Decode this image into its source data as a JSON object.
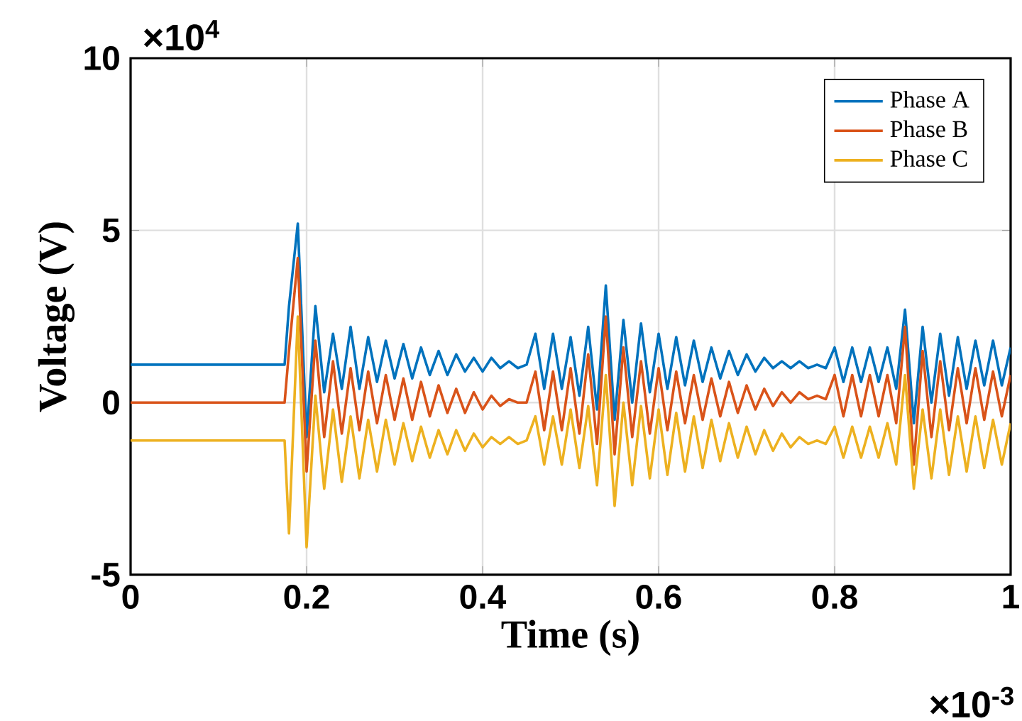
{
  "chart_data": {
    "type": "line",
    "xlabel": "Time (s)",
    "ylabel": "Voltage (V)",
    "annotations": [
      "×10$^{4}$",
      "×10$^{-3}$"
    ],
    "xlim": [
      0,
      1
    ],
    "ylim": [
      -5,
      10
    ],
    "xticks": [
      0,
      0.2,
      0.4,
      0.6,
      0.8,
      1
    ],
    "yticks": [
      -5,
      0,
      5,
      10
    ],
    "grid": true,
    "legend": "top right",
    "line_style": "solid",
    "x": [
      0,
      0.175,
      0.18,
      0.19,
      0.2,
      0.21,
      0.22,
      0.23,
      0.24,
      0.25,
      0.26,
      0.27,
      0.28,
      0.29,
      0.3,
      0.31,
      0.32,
      0.33,
      0.34,
      0.35,
      0.36,
      0.37,
      0.38,
      0.39,
      0.4,
      0.41,
      0.42,
      0.43,
      0.44,
      0.45,
      0.46,
      0.47,
      0.48,
      0.49,
      0.5,
      0.51,
      0.52,
      0.53,
      0.54,
      0.55,
      0.56,
      0.57,
      0.58,
      0.59,
      0.6,
      0.61,
      0.62,
      0.63,
      0.64,
      0.65,
      0.66,
      0.67,
      0.68,
      0.69,
      0.7,
      0.71,
      0.72,
      0.73,
      0.74,
      0.75,
      0.76,
      0.77,
      0.78,
      0.79,
      0.8,
      0.81,
      0.82,
      0.83,
      0.84,
      0.85,
      0.86,
      0.87,
      0.88,
      0.89,
      0.9,
      0.91,
      0.92,
      0.93,
      0.94,
      0.95,
      0.96,
      0.97,
      0.98,
      0.99,
      1.0
    ],
    "series": [
      {
        "name": "Phase A",
        "color": "#0072bd",
        "values": [
          1.1,
          1.1,
          2.8,
          5.2,
          -1.0,
          2.8,
          0.3,
          2.0,
          0.4,
          2.2,
          0.4,
          1.9,
          0.6,
          1.8,
          0.7,
          1.7,
          0.7,
          1.6,
          0.8,
          1.5,
          0.8,
          1.4,
          0.9,
          1.3,
          0.9,
          1.3,
          1.0,
          1.2,
          1.0,
          1.1,
          2.0,
          0.4,
          2.0,
          0.4,
          1.9,
          0.2,
          2.2,
          -0.2,
          3.4,
          -0.5,
          2.4,
          0.0,
          2.3,
          0.3,
          2.0,
          0.4,
          1.9,
          0.5,
          1.8,
          0.6,
          1.6,
          0.7,
          1.5,
          0.8,
          1.4,
          0.9,
          1.3,
          1.0,
          1.2,
          1.0,
          1.2,
          1.0,
          1.1,
          1.0,
          1.6,
          0.6,
          1.6,
          0.6,
          1.6,
          0.6,
          1.6,
          0.4,
          2.7,
          -0.6,
          2.2,
          0.0,
          2.0,
          0.2,
          1.9,
          0.4,
          1.8,
          0.5,
          1.8,
          0.5,
          1.6
        ]
      },
      {
        "name": "Phase B",
        "color": "#d95319",
        "values": [
          0,
          0,
          1.5,
          4.2,
          -2.0,
          1.8,
          -1.0,
          1.2,
          -0.9,
          1.0,
          -0.8,
          0.9,
          -0.6,
          0.8,
          -0.5,
          0.7,
          -0.5,
          0.6,
          -0.4,
          0.5,
          -0.3,
          0.4,
          -0.3,
          0.3,
          -0.2,
          0.2,
          -0.1,
          0.1,
          0.0,
          0.0,
          0.9,
          -0.8,
          0.9,
          -0.8,
          1.0,
          -0.9,
          1.4,
          -1.2,
          2.5,
          -1.5,
          1.6,
          -1.0,
          1.2,
          -0.9,
          1.0,
          -0.8,
          0.9,
          -0.6,
          0.8,
          -0.5,
          0.7,
          -0.4,
          0.6,
          -0.3,
          0.5,
          -0.2,
          0.4,
          -0.1,
          0.3,
          0.0,
          0.3,
          0.1,
          0.2,
          0.1,
          0.8,
          -0.4,
          0.8,
          -0.4,
          0.8,
          -0.4,
          0.8,
          -0.6,
          2.2,
          -1.8,
          1.5,
          -1.0,
          1.2,
          -0.8,
          1.0,
          -0.6,
          1.0,
          -0.5,
          0.9,
          -0.4,
          0.8
        ]
      },
      {
        "name": "Phase C",
        "color": "#edb120",
        "values": [
          -1.1,
          -1.1,
          -3.8,
          2.5,
          -4.2,
          0.2,
          -2.5,
          -0.2,
          -2.3,
          -0.4,
          -2.2,
          -0.5,
          -2.0,
          -0.5,
          -1.8,
          -0.6,
          -1.7,
          -0.7,
          -1.6,
          -0.8,
          -1.5,
          -0.8,
          -1.4,
          -0.9,
          -1.3,
          -1.0,
          -1.2,
          -1.0,
          -1.2,
          -1.1,
          -0.4,
          -1.8,
          -0.4,
          -1.8,
          -0.2,
          -1.9,
          -0.1,
          -2.4,
          0.8,
          -3.0,
          0.0,
          -2.4,
          -0.1,
          -2.2,
          -0.2,
          -2.1,
          -0.3,
          -2.0,
          -0.4,
          -1.9,
          -0.5,
          -1.7,
          -0.6,
          -1.6,
          -0.7,
          -1.5,
          -0.8,
          -1.4,
          -0.9,
          -1.3,
          -1.0,
          -1.2,
          -1.1,
          -1.2,
          -0.7,
          -1.6,
          -0.7,
          -1.6,
          -0.7,
          -1.6,
          -0.6,
          -1.8,
          0.8,
          -2.5,
          -0.2,
          -2.2,
          -0.2,
          -2.1,
          -0.4,
          -2.0,
          -0.4,
          -1.9,
          -0.5,
          -1.8,
          -0.6
        ]
      }
    ]
  }
}
